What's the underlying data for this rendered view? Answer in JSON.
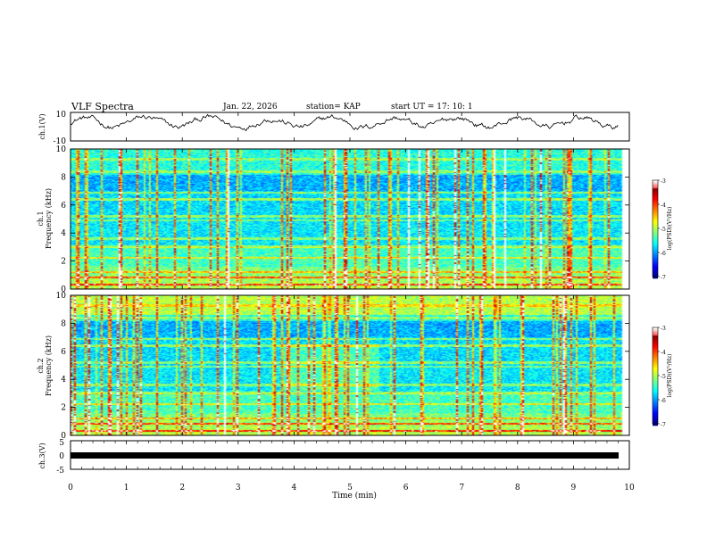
{
  "header": {
    "title": "VLF Spectra",
    "date": "Jan. 22, 2026",
    "station": "station= KAP",
    "start_time": "start  UT =   17: 10: 1"
  },
  "chart_data": [
    {
      "type": "line",
      "panel": "ch1-waveform",
      "ylabel": "ch.1(V)",
      "ylim": [
        -10,
        10
      ],
      "ytick_labels": [
        "10",
        "-10"
      ],
      "xlim": [
        0,
        10
      ],
      "xlabel": "",
      "description_of_signal": "noisy waveform oscillating around ~3 V"
    },
    {
      "type": "heatmap",
      "panel": "ch1-spectrogram",
      "ylabel": "ch.1 Frequency (kHz)",
      "ylim": [
        0,
        10
      ],
      "ytick_labels": [
        "0",
        "2",
        "4",
        "6",
        "8",
        "10"
      ],
      "xlim": [
        0,
        10
      ],
      "colorbar": {
        "label": "log(PSD)(V²/Hz)",
        "range": [
          -7,
          -3
        ],
        "tick_labels": [
          "-3",
          "-4",
          "-5",
          "-6",
          "-7"
        ]
      }
    },
    {
      "type": "heatmap",
      "panel": "ch2-spectrogram",
      "ylabel": "ch.2 Frequency (kHz)",
      "ylim": [
        0,
        10
      ],
      "ytick_labels": [
        "0",
        "2",
        "4",
        "6",
        "8",
        "10"
      ],
      "xlim": [
        0,
        10
      ],
      "colorbar": {
        "label": "log(PSD)(V²/Hz)",
        "range": [
          -7,
          -3
        ],
        "tick_labels": [
          "-3",
          "-4",
          "-5",
          "-6",
          "-7"
        ]
      }
    },
    {
      "type": "line",
      "panel": "ch3-waveform",
      "ylabel": "ch.3(V)",
      "ylim": [
        -5,
        5
      ],
      "ytick_labels": [
        "5",
        "0",
        "-5"
      ],
      "xlim": [
        0,
        10
      ],
      "xlabel": "Time  (min)",
      "xtick_labels": [
        "0",
        "1",
        "2",
        "3",
        "4",
        "5",
        "6",
        "7",
        "8",
        "9",
        "10"
      ],
      "description_of_signal": "flat high-frequency band near -1 V"
    }
  ]
}
